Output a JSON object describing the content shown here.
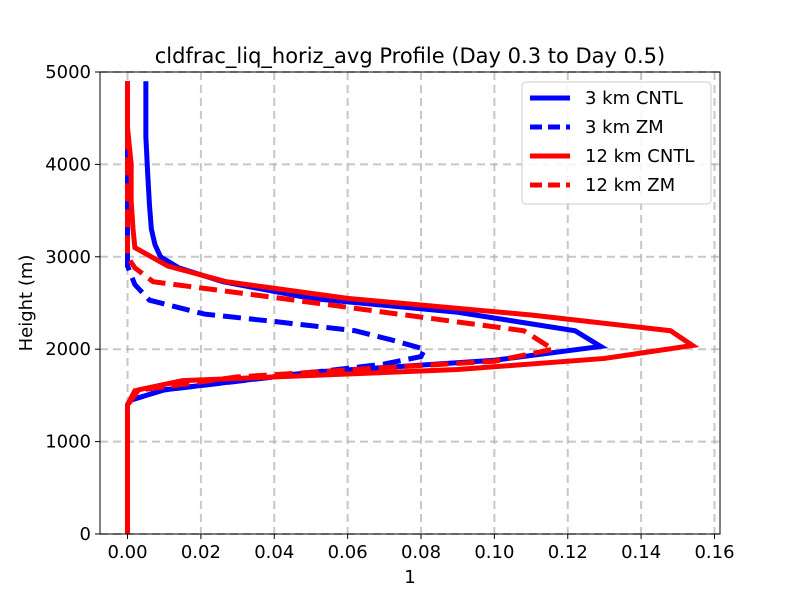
{
  "chart_data": {
    "type": "line",
    "title": "cldfrac_liq_horiz_avg Profile (Day 0.3 to Day 0.5)",
    "xlabel": "1",
    "ylabel": "Height (m)",
    "xlim": [
      -0.0075,
      0.1615
    ],
    "ylim": [
      0,
      5000
    ],
    "xticks": [
      "0.00",
      "0.02",
      "0.04",
      "0.06",
      "0.08",
      "0.10",
      "0.12",
      "0.14",
      "0.16"
    ],
    "yticks": [
      "0",
      "1000",
      "2000",
      "3000",
      "4000",
      "5000"
    ],
    "grid": true,
    "legend_position": "top-right",
    "series": [
      {
        "name": "3 km CNTL",
        "color": "#0000ff",
        "dash": "solid",
        "points": [
          [
            0,
            0
          ],
          [
            0,
            1400
          ],
          [
            0.001,
            1450
          ],
          [
            0.01,
            1560
          ],
          [
            0.05,
            1750
          ],
          [
            0.1,
            1880
          ],
          [
            0.129,
            2030
          ],
          [
            0.122,
            2200
          ],
          [
            0.09,
            2400
          ],
          [
            0.05,
            2550
          ],
          [
            0.026,
            2730
          ],
          [
            0.014,
            2880
          ],
          [
            0.009,
            3000
          ],
          [
            0.0075,
            3130
          ],
          [
            0.0065,
            3300
          ],
          [
            0.006,
            3550
          ],
          [
            0.0055,
            3900
          ],
          [
            0.005,
            4300
          ],
          [
            0.005,
            4650
          ],
          [
            0.005,
            4900
          ]
        ]
      },
      {
        "name": "3 km ZM",
        "color": "#0000ff",
        "dash": "dashed",
        "points": [
          [
            0,
            0
          ],
          [
            0,
            1400
          ],
          [
            0.001,
            1450
          ],
          [
            0.01,
            1560
          ],
          [
            0.04,
            1700
          ],
          [
            0.07,
            1840
          ],
          [
            0.08,
            1920
          ],
          [
            0.081,
            2000
          ],
          [
            0.072,
            2100
          ],
          [
            0.062,
            2200
          ],
          [
            0.04,
            2300
          ],
          [
            0.021,
            2380
          ],
          [
            0.006,
            2530
          ],
          [
            0.002,
            2700
          ],
          [
            0,
            2900
          ],
          [
            0,
            3100
          ],
          [
            0,
            3300
          ],
          [
            0,
            3600
          ],
          [
            0,
            4000
          ],
          [
            0,
            4900
          ]
        ]
      },
      {
        "name": "12 km CNTL",
        "color": "#ff0000",
        "dash": "solid",
        "points": [
          [
            0,
            0
          ],
          [
            0,
            1400
          ],
          [
            0.001,
            1450
          ],
          [
            0.003,
            1560
          ],
          [
            0.015,
            1660
          ],
          [
            0.09,
            1780
          ],
          [
            0.13,
            1900
          ],
          [
            0.154,
            2040
          ],
          [
            0.148,
            2200
          ],
          [
            0.11,
            2370
          ],
          [
            0.06,
            2550
          ],
          [
            0.027,
            2730
          ],
          [
            0.011,
            2900
          ],
          [
            0.002,
            3100
          ],
          [
            0.0015,
            3300
          ],
          [
            0.001,
            3600
          ],
          [
            0.001,
            4000
          ],
          [
            0,
            4400
          ],
          [
            0,
            4900
          ]
        ]
      },
      {
        "name": "12 km ZM",
        "color": "#ff0000",
        "dash": "dashed",
        "points": [
          [
            0,
            0
          ],
          [
            0,
            1400
          ],
          [
            0.002,
            1550
          ],
          [
            0.03,
            1700
          ],
          [
            0.07,
            1800
          ],
          [
            0.1,
            1870
          ],
          [
            0.116,
            2000
          ],
          [
            0.108,
            2200
          ],
          [
            0.07,
            2400
          ],
          [
            0.04,
            2560
          ],
          [
            0.007,
            2730
          ],
          [
            0.002,
            2880
          ],
          [
            0,
            3000
          ],
          [
            0,
            3200
          ],
          [
            0,
            3400
          ],
          [
            0,
            3800
          ],
          [
            0,
            4200
          ],
          [
            0,
            4900
          ]
        ]
      }
    ]
  }
}
